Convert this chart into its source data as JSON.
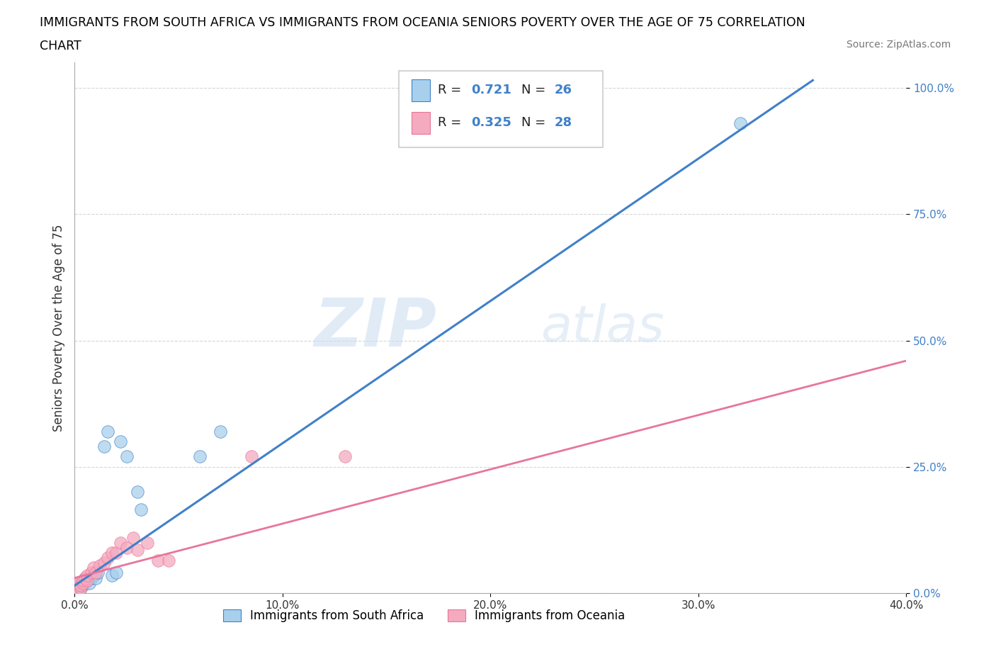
{
  "title_line1": "IMMIGRANTS FROM SOUTH AFRICA VS IMMIGRANTS FROM OCEANIA SENIORS POVERTY OVER THE AGE OF 75 CORRELATION",
  "title_line2": "CHART",
  "source_text": "Source: ZipAtlas.com",
  "ylabel": "Seniors Poverty Over the Age of 75",
  "xmin": 0.0,
  "xmax": 0.4,
  "ymin": 0.0,
  "ymax": 1.05,
  "yticks": [
    0.0,
    0.25,
    0.5,
    0.75,
    1.0
  ],
  "ytick_labels": [
    "0.0%",
    "25.0%",
    "50.0%",
    "75.0%",
    "100.0%"
  ],
  "xtick_labels": [
    "0.0%",
    "10.0%",
    "20.0%",
    "30.0%",
    "40.0%"
  ],
  "xticks": [
    0.0,
    0.1,
    0.2,
    0.3,
    0.4
  ],
  "watermark_zip": "ZIP",
  "watermark_atlas": "atlas",
  "color_blue": "#A8D0EC",
  "color_pink": "#F4AABF",
  "line_blue": "#4080C8",
  "line_pink": "#E8759A",
  "blue_scatter": [
    [
      0.001,
      0.005
    ],
    [
      0.001,
      0.01
    ],
    [
      0.002,
      0.008
    ],
    [
      0.002,
      0.015
    ],
    [
      0.003,
      0.01
    ],
    [
      0.003,
      0.02
    ],
    [
      0.004,
      0.015
    ],
    [
      0.005,
      0.02
    ],
    [
      0.005,
      0.03
    ],
    [
      0.006,
      0.025
    ],
    [
      0.007,
      0.02
    ],
    [
      0.008,
      0.03
    ],
    [
      0.009,
      0.035
    ],
    [
      0.01,
      0.03
    ],
    [
      0.011,
      0.04
    ],
    [
      0.014,
      0.29
    ],
    [
      0.016,
      0.32
    ],
    [
      0.018,
      0.035
    ],
    [
      0.02,
      0.04
    ],
    [
      0.022,
      0.3
    ],
    [
      0.025,
      0.27
    ],
    [
      0.03,
      0.2
    ],
    [
      0.032,
      0.165
    ],
    [
      0.06,
      0.27
    ],
    [
      0.07,
      0.32
    ],
    [
      0.32,
      0.93
    ]
  ],
  "pink_scatter": [
    [
      0.001,
      0.005
    ],
    [
      0.001,
      0.01
    ],
    [
      0.002,
      0.015
    ],
    [
      0.002,
      0.02
    ],
    [
      0.003,
      0.01
    ],
    [
      0.003,
      0.015
    ],
    [
      0.004,
      0.02
    ],
    [
      0.004,
      0.025
    ],
    [
      0.005,
      0.03
    ],
    [
      0.006,
      0.025
    ],
    [
      0.006,
      0.035
    ],
    [
      0.008,
      0.04
    ],
    [
      0.009,
      0.05
    ],
    [
      0.01,
      0.04
    ],
    [
      0.012,
      0.055
    ],
    [
      0.014,
      0.06
    ],
    [
      0.016,
      0.07
    ],
    [
      0.018,
      0.08
    ],
    [
      0.02,
      0.08
    ],
    [
      0.022,
      0.1
    ],
    [
      0.025,
      0.09
    ],
    [
      0.028,
      0.11
    ],
    [
      0.03,
      0.085
    ],
    [
      0.035,
      0.1
    ],
    [
      0.04,
      0.065
    ],
    [
      0.045,
      0.065
    ],
    [
      0.085,
      0.27
    ],
    [
      0.13,
      0.27
    ]
  ],
  "blue_line_x": [
    0.0,
    0.355
  ],
  "blue_line_y": [
    0.015,
    1.015
  ],
  "pink_line_x": [
    0.0,
    0.4
  ],
  "pink_line_y": [
    0.03,
    0.46
  ]
}
